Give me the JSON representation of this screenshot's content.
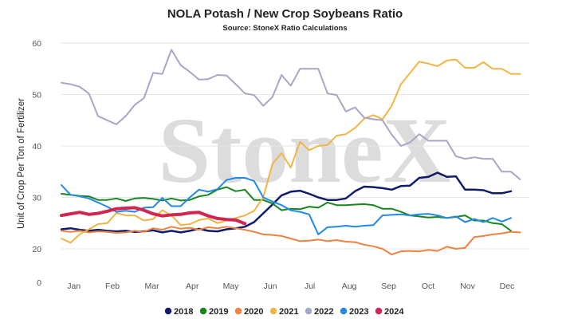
{
  "chart_data": {
    "type": "line",
    "title": "NOLA Potash / New Crop Soybeans Ratio",
    "subtitle": "Source: StoneX Ratio Calculations",
    "ylabel": "Unit of Crop Per Ton of Fertilizer",
    "watermark": "StoneX",
    "ylim": [
      0,
      60
    ],
    "yticks": [
      "0",
      "20",
      "30",
      "40",
      "50",
      "60"
    ],
    "x_tick_labels": [
      "Jan",
      "Feb",
      "Mar",
      "Apr",
      "May",
      "Jun",
      "Jul",
      "Aug",
      "Sep",
      "Oct",
      "Nov",
      "Dec"
    ],
    "x_unit": "week of year",
    "xlim": [
      1,
      52
    ],
    "grid": true,
    "legend_position": "bottom",
    "series": [
      {
        "name": "2018",
        "color": "#0f1c6b",
        "width": 2.5,
        "x": [
          1,
          2,
          3,
          4,
          5,
          6,
          7,
          8,
          9,
          10,
          11,
          12,
          13,
          14,
          15,
          16,
          17,
          18,
          19,
          20,
          21,
          22,
          23,
          24,
          25,
          26,
          27,
          28,
          29,
          30,
          31,
          32,
          33,
          34,
          35,
          36,
          37,
          38,
          39,
          40,
          41,
          42,
          43,
          44,
          45,
          46,
          47,
          48,
          49,
          50
        ],
        "y": [
          23.8,
          24.0,
          23.7,
          23.5,
          23.7,
          23.5,
          23.4,
          23.5,
          23.3,
          23.4,
          23.6,
          23.2,
          23.5,
          23.2,
          23.5,
          23.9,
          23.5,
          23.4,
          23.8,
          24.0,
          24.3,
          25.2,
          26.9,
          28.6,
          30.4,
          31.1,
          31.3,
          30.7,
          30.0,
          29.5,
          29.5,
          29.8,
          31.2,
          32.1,
          32.0,
          31.8,
          31.5,
          32.2,
          32.3,
          33.8,
          34.0,
          34.8,
          34.0,
          34.1,
          31.5,
          31.5,
          31.4,
          30.8,
          30.8,
          31.2
        ]
      },
      {
        "name": "2019",
        "color": "#16871f",
        "width": 2,
        "x": [
          1,
          2,
          3,
          4,
          5,
          6,
          7,
          8,
          9,
          10,
          11,
          12,
          13,
          14,
          15,
          16,
          17,
          18,
          19,
          20,
          21,
          22,
          23,
          24,
          25,
          26,
          27,
          28,
          29,
          30,
          31,
          32,
          33,
          34,
          35,
          36,
          37,
          38,
          39,
          40,
          41,
          42,
          43,
          44,
          45,
          46,
          47,
          48,
          49,
          50
        ],
        "y": [
          30.7,
          30.5,
          30.3,
          30.2,
          29.5,
          29.5,
          29.8,
          29.3,
          29.8,
          29.9,
          29.7,
          29.4,
          29.8,
          29.4,
          29.5,
          30.2,
          30.5,
          31.5,
          32.0,
          31.2,
          31.5,
          29.5,
          29.5,
          28.8,
          27.5,
          27.8,
          27.7,
          28.2,
          28.0,
          29.0,
          28.5,
          28.5,
          28.6,
          28.7,
          28.5,
          27.8,
          27.8,
          27.2,
          26.5,
          26.3,
          26.1,
          26.2,
          26.0,
          26.2,
          26.5,
          25.5,
          25.5,
          25.0,
          24.8,
          23.5
        ]
      },
      {
        "name": "2020",
        "color": "#f0813f",
        "width": 2,
        "x": [
          1,
          2,
          3,
          4,
          5,
          6,
          7,
          8,
          9,
          10,
          11,
          12,
          13,
          14,
          15,
          16,
          17,
          18,
          19,
          20,
          21,
          22,
          23,
          24,
          25,
          26,
          27,
          28,
          29,
          30,
          31,
          32,
          33,
          34,
          35,
          36,
          37,
          38,
          39,
          40,
          41,
          42,
          43,
          44,
          45,
          46,
          47,
          48,
          49,
          50,
          51
        ],
        "y": [
          23.5,
          23.3,
          23.5,
          23.2,
          23.4,
          23.3,
          23.1,
          23.2,
          23.5,
          23.3,
          24.0,
          23.7,
          24.3,
          23.9,
          24.1,
          23.7,
          24.2,
          24.0,
          24.3,
          24.0,
          23.7,
          23.3,
          22.8,
          22.7,
          22.5,
          22.0,
          21.5,
          21.6,
          21.8,
          21.5,
          21.7,
          21.4,
          21.3,
          20.8,
          20.5,
          20.0,
          18.9,
          19.5,
          19.6,
          19.5,
          19.8,
          19.6,
          20.4,
          20.0,
          20.2,
          22.3,
          22.5,
          22.8,
          23.0,
          23.3,
          23.2
        ]
      },
      {
        "name": "2021",
        "color": "#f3b445",
        "width": 2,
        "x": [
          1,
          2,
          3,
          4,
          5,
          6,
          7,
          8,
          9,
          10,
          11,
          12,
          13,
          14,
          15,
          16,
          17,
          18,
          19,
          20,
          21,
          22,
          23,
          24,
          25,
          26,
          27,
          28,
          29,
          30,
          31,
          32,
          33,
          34,
          35,
          36,
          37,
          38,
          39,
          40,
          41,
          42,
          43,
          44,
          45,
          46,
          47,
          48,
          49,
          50,
          51
        ],
        "y": [
          22.0,
          21.2,
          22.8,
          23.8,
          24.8,
          25.0,
          27.0,
          26.5,
          26.5,
          25.5,
          25.8,
          27.5,
          26.5,
          24.6,
          24.8,
          25.6,
          25.9,
          25.0,
          25.5,
          26.0,
          26.5,
          27.4,
          30.0,
          36.5,
          38.6,
          35.8,
          40.8,
          39.2,
          40.0,
          40.2,
          42.0,
          42.3,
          43.5,
          45.3,
          46.0,
          45.2,
          47.8,
          52.0,
          54.2,
          56.4,
          56.0,
          55.5,
          56.6,
          56.8,
          55.2,
          55.2,
          56.3,
          55.0,
          55.0,
          54.0,
          54.0
        ]
      },
      {
        "name": "2022",
        "color": "#a6a6c8",
        "width": 2,
        "x": [
          1,
          2,
          3,
          4,
          5,
          6,
          7,
          8,
          9,
          10,
          11,
          12,
          13,
          14,
          15,
          16,
          17,
          18,
          19,
          20,
          21,
          22,
          23,
          24,
          25,
          26,
          27,
          28,
          29,
          30,
          31,
          32,
          33,
          34,
          35,
          36,
          37,
          38,
          39,
          40,
          41,
          42,
          43,
          44,
          45,
          46,
          47,
          48,
          49,
          50,
          51
        ],
        "y": [
          52.3,
          52.0,
          51.5,
          50.2,
          45.8,
          45.0,
          44.2,
          45.8,
          48.0,
          49.3,
          54.2,
          54.0,
          58.7,
          55.7,
          54.4,
          52.9,
          53.0,
          53.8,
          53.7,
          52.0,
          50.2,
          49.9,
          47.8,
          49.5,
          53.8,
          51.7,
          55.0,
          55.0,
          55.0,
          50.2,
          49.9,
          46.7,
          47.5,
          45.5,
          45.2,
          45.0,
          42.2,
          40.0,
          40.7,
          42.3,
          41.0,
          41.0,
          41.0,
          38.0,
          37.5,
          37.8,
          37.5,
          37.5,
          35.0,
          35.0,
          33.5
        ]
      },
      {
        "name": "2023",
        "color": "#2289e6",
        "width": 2,
        "x": [
          1,
          2,
          3,
          4,
          5,
          6,
          7,
          8,
          9,
          10,
          11,
          12,
          13,
          14,
          15,
          16,
          17,
          18,
          19,
          20,
          21,
          22,
          23,
          24,
          25,
          26,
          27,
          28,
          29,
          30,
          31,
          32,
          33,
          34,
          35,
          36,
          37,
          38,
          39,
          40,
          41,
          42,
          43,
          44,
          45,
          46,
          47,
          48,
          49,
          50
        ],
        "y": [
          32.4,
          30.5,
          30.2,
          29.8,
          29.0,
          28.2,
          27.2,
          27.4,
          27.2,
          28.0,
          28.1,
          29.9,
          28.3,
          28.3,
          30.0,
          31.5,
          31.1,
          31.6,
          33.4,
          33.8,
          33.8,
          33.2,
          30.0,
          29.2,
          28.5,
          27.5,
          27.2,
          26.7,
          22.8,
          24.2,
          24.3,
          24.5,
          24.3,
          24.5,
          24.6,
          26.5,
          26.6,
          26.7,
          26.5,
          26.7,
          26.8,
          26.5,
          26.0,
          26.3,
          25.2,
          25.8,
          25.2,
          26.0,
          25.3,
          26.0
        ]
      },
      {
        "name": "2024",
        "color": "#d0264f",
        "width": 4,
        "x": [
          1,
          2,
          3,
          4,
          5,
          6,
          7,
          8,
          9,
          10,
          11,
          12,
          13,
          14,
          15,
          16,
          17,
          18,
          19,
          20,
          21
        ],
        "y": [
          26.5,
          26.8,
          27.1,
          26.7,
          26.9,
          27.3,
          27.8,
          27.9,
          28.0,
          27.5,
          26.8,
          26.4,
          26.6,
          26.7,
          27.0,
          27.1,
          26.4,
          25.9,
          25.7,
          25.6,
          24.9
        ]
      }
    ]
  }
}
